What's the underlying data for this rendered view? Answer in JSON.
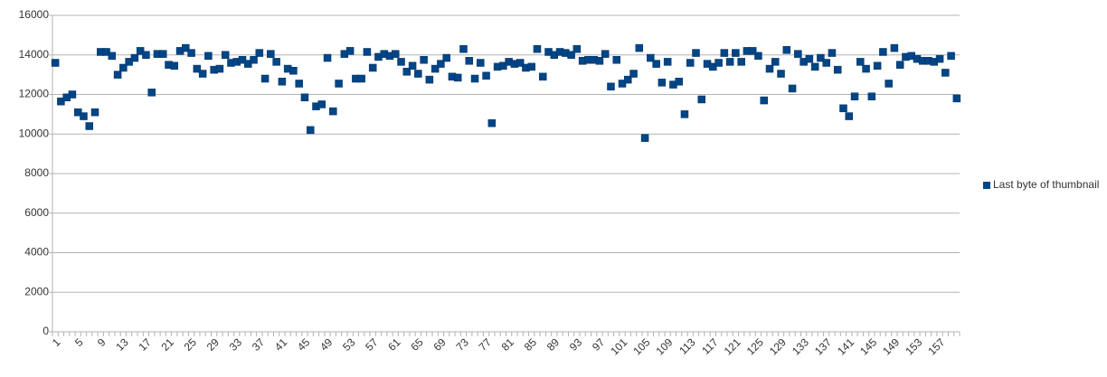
{
  "chart_data": {
    "type": "scatter",
    "legend": "right",
    "marker": "square",
    "color": "#004586",
    "grid": true,
    "ylim": [
      0,
      16000
    ],
    "yticks": [
      0,
      2000,
      4000,
      6000,
      8000,
      10000,
      12000,
      14000,
      16000
    ],
    "categories": [
      1,
      null,
      null,
      null,
      5,
      null,
      null,
      null,
      9,
      null,
      null,
      null,
      13,
      null,
      null,
      null,
      17,
      null,
      null,
      null,
      21,
      null,
      null,
      null,
      25,
      null,
      null,
      null,
      29,
      null,
      null,
      null,
      33,
      null,
      null,
      null,
      37,
      null,
      null,
      null,
      41,
      null,
      null,
      null,
      45,
      null,
      null,
      null,
      49,
      null,
      null,
      null,
      53,
      null,
      null,
      null,
      57,
      null,
      null,
      null,
      61,
      null,
      null,
      null,
      65,
      null,
      null,
      null,
      69,
      null,
      null,
      null,
      73,
      null,
      null,
      null,
      77,
      null,
      null,
      null,
      81,
      null,
      null,
      null,
      85,
      null,
      null,
      null,
      89,
      null,
      null,
      null,
      93,
      null,
      null,
      null,
      97,
      null,
      null,
      null,
      101,
      null,
      null,
      null,
      105,
      null,
      null,
      null,
      109,
      null,
      null,
      null,
      113,
      null,
      null,
      null,
      117,
      null,
      null,
      null,
      121,
      null,
      null,
      null,
      125,
      null,
      null,
      null,
      129,
      null,
      null,
      null,
      133,
      null,
      null,
      null,
      137,
      null,
      null,
      null,
      141,
      null,
      null,
      null,
      145,
      null,
      null,
      null,
      149,
      null,
      null,
      null,
      153,
      null,
      null,
      null,
      157,
      null,
      null,
      null
    ],
    "series": [
      {
        "name": "Last byte of thumbnail",
        "color": "#004586",
        "values": [
          13600,
          11650,
          11850,
          12000,
          11100,
          10900,
          10400,
          11100,
          14150,
          14150,
          13950,
          13000,
          13350,
          13650,
          13850,
          14200,
          14000,
          12100,
          14050,
          14050,
          13500,
          13450,
          14200,
          14350,
          14100,
          13300,
          13050,
          13950,
          13250,
          13300,
          14000,
          13600,
          13650,
          13750,
          13550,
          13750,
          14100,
          12800,
          14050,
          13650,
          12650,
          13300,
          13200,
          12550,
          11850,
          10200,
          11400,
          11500,
          13850,
          11150,
          12550,
          14050,
          14200,
          12800,
          12800,
          14150,
          13350,
          13900,
          14050,
          13950,
          14050,
          13650,
          13150,
          13450,
          13050,
          13750,
          12750,
          13300,
          13550,
          13850,
          12900,
          12850,
          14300,
          13700,
          12800,
          13600,
          12950,
          10550,
          13400,
          13450,
          13650,
          13550,
          13600,
          13350,
          13400,
          14300,
          12900,
          14150,
          14000,
          14150,
          14100,
          14000,
          14300,
          13700,
          13750,
          13750,
          13700,
          14050,
          12400,
          13750,
          12550,
          12750,
          13050,
          14350,
          9800,
          13850,
          13550,
          12600,
          13650,
          12500,
          12650,
          11000,
          13600,
          14100,
          11750,
          13550,
          13400,
          13600,
          14100,
          13650,
          14100,
          13650,
          14200,
          14200,
          13950,
          11700,
          13300,
          13650,
          13050,
          14250,
          12300,
          14050,
          13650,
          13800,
          13400,
          13850,
          13600,
          14100,
          13250,
          11300,
          10900,
          11900,
          13650,
          13300,
          11900,
          13450,
          14150,
          12550,
          14350,
          13500,
          13900,
          13950,
          13800,
          13700,
          13700,
          13650,
          13800,
          13100,
          13950,
          11800
        ]
      }
    ]
  }
}
